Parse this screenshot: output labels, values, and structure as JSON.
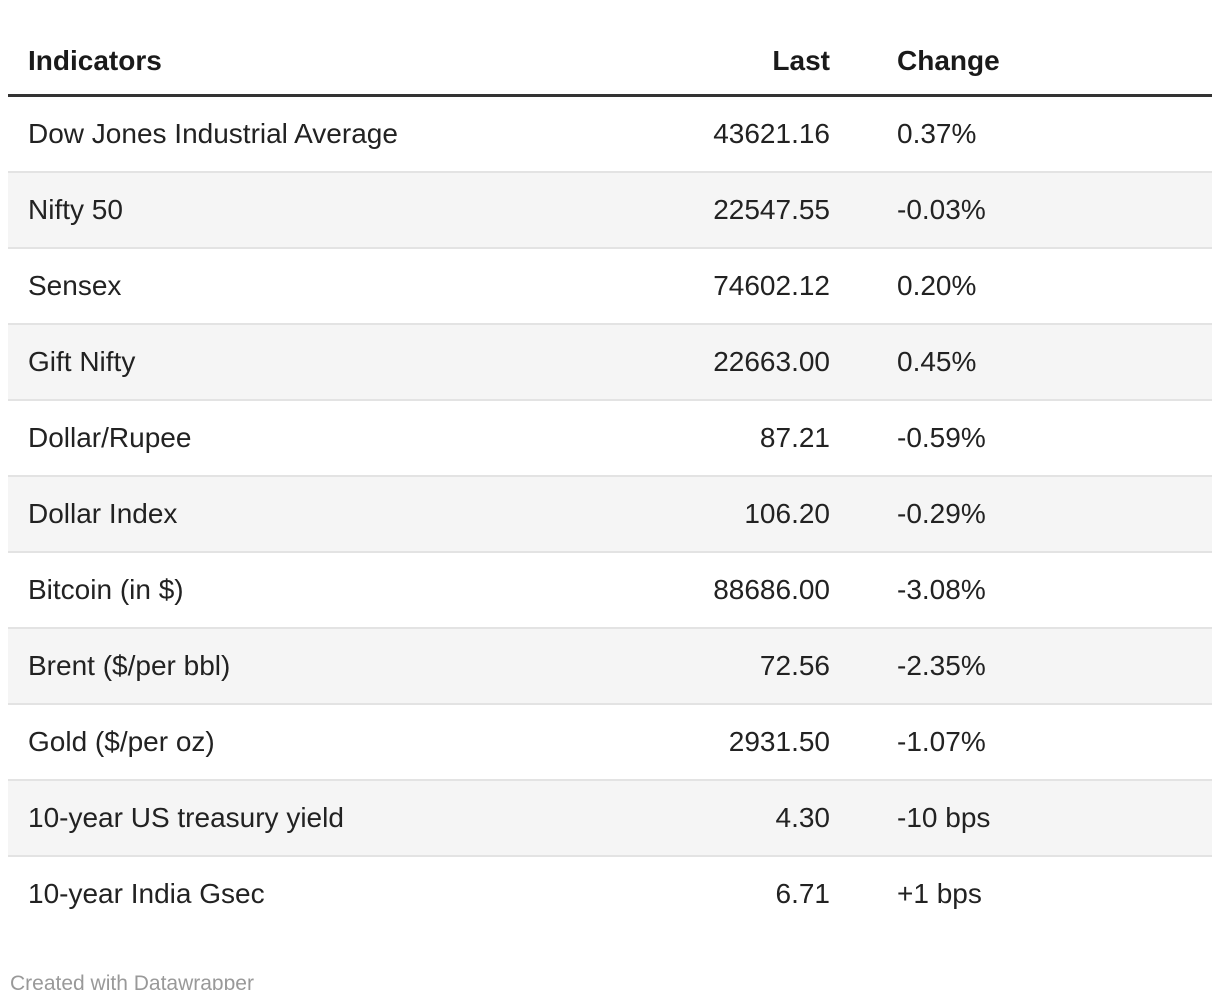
{
  "chart_data": {
    "type": "table",
    "title": "",
    "columns": [
      "Indicators",
      "Last",
      "Change"
    ],
    "rows": [
      {
        "indicator": "Dow Jones Industrial Average",
        "last": "43621.16",
        "change": "0.37%"
      },
      {
        "indicator": "Nifty 50",
        "last": "22547.55",
        "change": "-0.03%"
      },
      {
        "indicator": "Sensex",
        "last": "74602.12",
        "change": "0.20%"
      },
      {
        "indicator": "Gift Nifty",
        "last": "22663.00",
        "change": "0.45%"
      },
      {
        "indicator": "Dollar/Rupee",
        "last": "87.21",
        "change": "-0.59%"
      },
      {
        "indicator": "Dollar Index",
        "last": "106.20",
        "change": "-0.29%"
      },
      {
        "indicator": "Bitcoin (in $)",
        "last": "88686.00",
        "change": "-3.08%"
      },
      {
        "indicator": "Brent ($/per bbl)",
        "last": "72.56",
        "change": "-2.35%"
      },
      {
        "indicator": "Gold ($/per oz)",
        "last": "2931.50",
        "change": "-1.07%"
      },
      {
        "indicator": "10-year US treasury yield",
        "last": "4.30",
        "change": "-10 bps"
      },
      {
        "indicator": "10-year India Gsec",
        "last": "6.71",
        "change": "+1 bps"
      }
    ],
    "layout": {
      "zebra_striping": true,
      "striped_rows": "even",
      "last_column_align": "right",
      "change_column_align": "left"
    },
    "colors": {
      "background": "#ffffff",
      "stripe": "#f5f5f5",
      "row_border": "#e3e3e3",
      "header_rule": "#333333",
      "text": "#222222",
      "header_text": "#1a1a1a",
      "footer_text": "#999999"
    }
  },
  "footer": {
    "attribution": "Created with Datawrapper"
  }
}
